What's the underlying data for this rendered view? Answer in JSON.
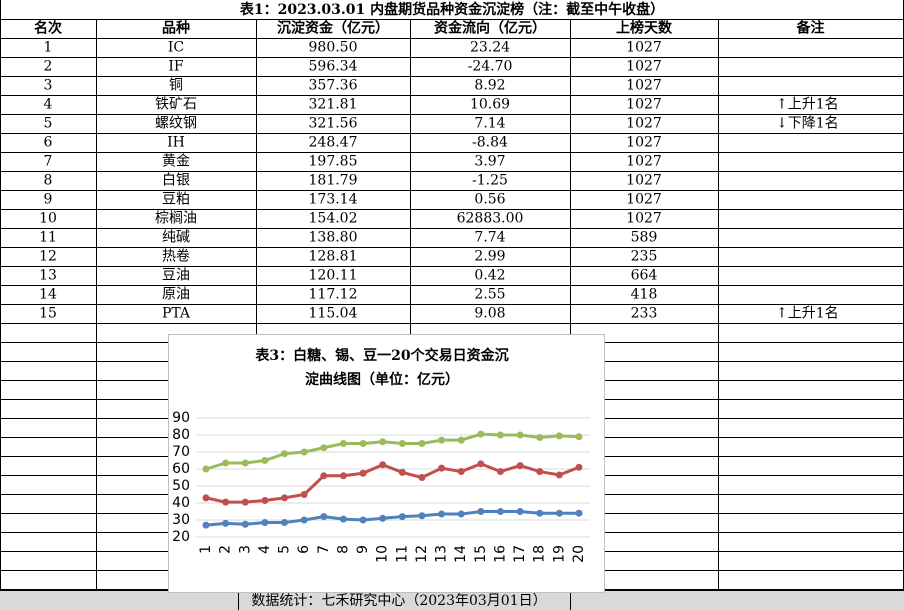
{
  "table": {
    "title": "表1：2023.03.01 内盘期货品种资金沉淀榜（注：截至中午收盘）",
    "headers": [
      "名次",
      "品种",
      "沉淀资金（亿元）",
      "资金流向（亿元）",
      "上榜天数",
      "备注"
    ],
    "rows": [
      [
        "1",
        "IC",
        "980.50",
        "23.24",
        "1027"
      ],
      [
        "2",
        "IF",
        "596.34",
        "-24.70",
        "1027"
      ],
      [
        "3",
        "铜",
        "357.36",
        "8.92",
        "1027"
      ],
      [
        "4",
        "铁矿石",
        "321.81",
        "10.69",
        "1027",
        "↑上升1名"
      ],
      [
        "5",
        "螺纹钢",
        "321.56",
        "7.14",
        "1027",
        "↓下降1名"
      ],
      [
        "6",
        "IH",
        "248.47",
        "-8.84",
        "1027"
      ],
      [
        "7",
        "黄金",
        "197.85",
        "3.97",
        "1027"
      ],
      [
        "8",
        "白银",
        "181.79",
        "-1.25",
        "1027"
      ],
      [
        "9",
        "豆粕",
        "173.14",
        "0.56",
        "1027"
      ],
      [
        "10",
        "棕榈油",
        "154.02",
        "62883.00",
        "1027"
      ],
      [
        "11",
        "纯碱",
        "138.80",
        "7.74",
        "589"
      ],
      [
        "12",
        "热卷",
        "128.81",
        "2.99",
        "235"
      ],
      [
        "13",
        "豆油",
        "120.11",
        "0.42",
        "664"
      ],
      [
        "14",
        "原油",
        "117.12",
        "2.55",
        "418"
      ],
      [
        "15",
        "PTA",
        "115.04",
        "9.08",
        "233",
        "↑上升1名"
      ]
    ],
    "footer": "数据统计：七禾研究中心（2023年03月01日）"
  },
  "chart_data": {
    "type": "line",
    "title": [
      "表3：白糖、锡、豆一20个交易日资金沉",
      "淀曲线图（单位：亿元）"
    ],
    "categories": [
      1,
      2,
      3,
      4,
      5,
      6,
      7,
      8,
      9,
      10,
      11,
      12,
      13,
      14,
      15,
      16,
      17,
      18,
      19,
      20
    ],
    "ylim": [
      20,
      90
    ],
    "yticks": [
      20,
      30,
      40,
      50,
      60,
      70,
      80,
      90
    ],
    "grid": true,
    "series": [
      {
        "color": "#9bbb59",
        "values": [
          60,
          63.5,
          63.5,
          65,
          69,
          70,
          72.5,
          75,
          75,
          76,
          75,
          75,
          77,
          77,
          80.5,
          80,
          80,
          78.5,
          79.5,
          79
        ]
      },
      {
        "color": "#c0504d",
        "values": [
          43,
          40.5,
          40.5,
          41.5,
          43,
          45,
          56,
          56,
          57.5,
          62.5,
          58,
          55,
          60.5,
          58.5,
          63,
          58.5,
          62,
          58.5,
          56.5,
          61
        ]
      },
      {
        "color": "#4f81bd",
        "values": [
          27,
          28,
          27.5,
          28.5,
          28.5,
          30,
          32,
          30.5,
          30,
          31,
          32,
          32.5,
          33.5,
          33.5,
          35,
          35,
          35,
          34,
          34,
          34
        ]
      }
    ]
  }
}
